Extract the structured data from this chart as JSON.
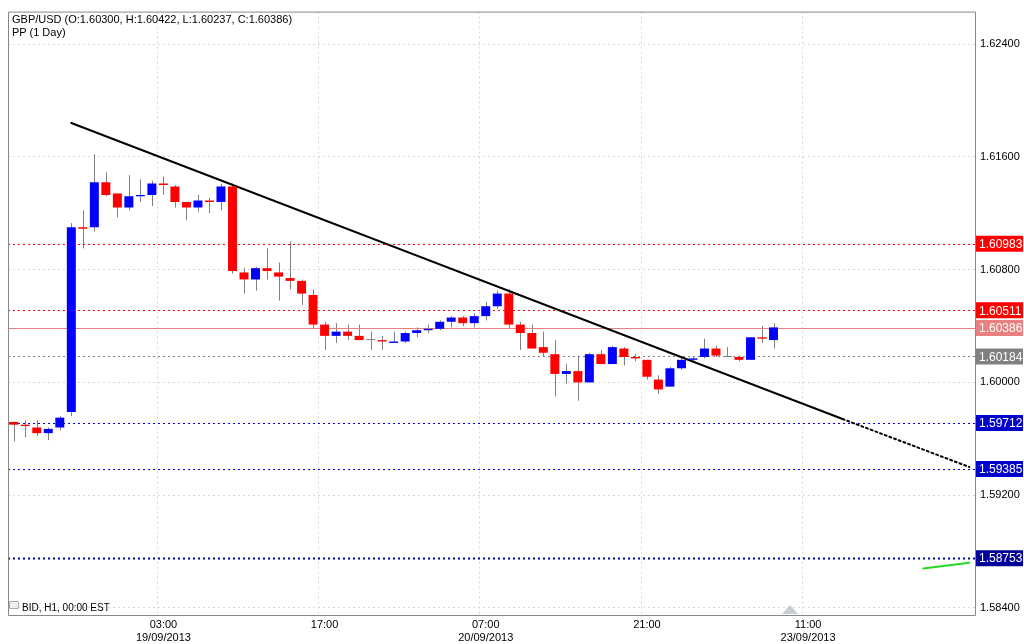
{
  "chart_data": {
    "type": "candlestick",
    "title": "GBP/USD (O:1.60300, H:1.60422, L:1.60237, C:1.60386)",
    "subtitle": "PP (1 Day)",
    "categories": [
      null,
      null,
      null,
      null,
      null,
      null,
      null,
      null,
      null,
      null,
      null,
      null,
      null,
      "03:00\n19/09/2013",
      null,
      null,
      null,
      null,
      null,
      null,
      null,
      null,
      null,
      null,
      null,
      null,
      null,
      "17:00",
      null,
      null,
      null,
      null,
      null,
      null,
      null,
      null,
      null,
      null,
      null,
      null,
      null,
      "07:00\n20/09/2013",
      null,
      null,
      null,
      null,
      null,
      null,
      null,
      null,
      null,
      null,
      null,
      null,
      null,
      "21:00",
      null,
      null,
      null,
      null,
      null,
      null,
      null,
      null,
      null,
      null,
      null,
      null,
      null,
      "11:00\n23/09/2013",
      null,
      null,
      null,
      null,
      null,
      null,
      null,
      null,
      null,
      null,
      null,
      null,
      null,
      null
    ],
    "ohlc": [
      [
        1.5972,
        1.5972,
        1.5958,
        1.597
      ],
      [
        1.597,
        1.5973,
        1.5961,
        1.5969
      ],
      [
        1.5968,
        1.5973,
        1.5962,
        1.5964
      ],
      [
        1.5964,
        1.5968,
        1.5959,
        1.5967
      ],
      [
        1.5968,
        1.5976,
        1.5966,
        1.5975
      ],
      [
        1.5979,
        1.6113,
        1.5976,
        1.611
      ],
      [
        1.611,
        1.6122,
        1.6095,
        1.6109
      ],
      [
        1.611,
        1.6162,
        1.6107,
        1.6142
      ],
      [
        1.6142,
        1.6149,
        1.6132,
        1.6133
      ],
      [
        1.6134,
        1.6134,
        1.6117,
        1.6124
      ],
      [
        1.6124,
        1.6147,
        1.6122,
        1.6132
      ],
      [
        1.6132,
        1.6144,
        1.6128,
        1.6133
      ],
      [
        1.6133,
        1.6143,
        1.6125,
        1.6141
      ],
      [
        1.6141,
        1.6146,
        1.6133,
        1.614
      ],
      [
        1.6139,
        1.614,
        1.6124,
        1.6128
      ],
      [
        1.6128,
        1.6128,
        1.6115,
        1.6124
      ],
      [
        1.6124,
        1.6133,
        1.6121,
        1.6129
      ],
      [
        1.6129,
        1.6131,
        1.612,
        1.6128
      ],
      [
        1.6128,
        1.6141,
        1.6122,
        1.6139
      ],
      [
        1.6139,
        1.6141,
        1.6077,
        1.6079
      ],
      [
        1.6078,
        1.6081,
        1.6063,
        1.6073
      ],
      [
        1.6073,
        1.6082,
        1.6065,
        1.6081
      ],
      [
        1.6081,
        1.6095,
        1.6073,
        1.6079
      ],
      [
        1.6078,
        1.6085,
        1.6058,
        1.6075
      ],
      [
        1.6074,
        1.61,
        1.6066,
        1.6072
      ],
      [
        1.6072,
        1.6073,
        1.6055,
        1.6063
      ],
      [
        1.6062,
        1.6066,
        1.6038,
        1.6041
      ],
      [
        1.6041,
        1.6043,
        1.6023,
        1.6033
      ],
      [
        1.6033,
        1.6042,
        1.6028,
        1.6036
      ],
      [
        1.6036,
        1.6041,
        1.603,
        1.6033
      ],
      [
        1.6033,
        1.6041,
        1.603,
        1.603
      ],
      [
        1.603,
        1.6036,
        1.6023,
        1.603
      ],
      [
        1.603,
        1.6033,
        1.6023,
        1.6029
      ],
      [
        1.6028,
        1.6036,
        1.6028,
        1.6029
      ],
      [
        1.6029,
        1.6036,
        1.6028,
        1.6035
      ],
      [
        1.6035,
        1.6039,
        1.6032,
        1.6037
      ],
      [
        1.6037,
        1.6041,
        1.6035,
        1.6038
      ],
      [
        1.6038,
        1.6044,
        1.6037,
        1.6043
      ],
      [
        1.6043,
        1.6047,
        1.6039,
        1.6046
      ],
      [
        1.6046,
        1.6047,
        1.604,
        1.6042
      ],
      [
        1.6042,
        1.6049,
        1.6039,
        1.6047
      ],
      [
        1.6047,
        1.6057,
        1.6044,
        1.6054
      ],
      [
        1.6054,
        1.6065,
        1.6052,
        1.6063
      ],
      [
        1.6063,
        1.6066,
        1.6038,
        1.6041
      ],
      [
        1.6041,
        1.6043,
        1.6023,
        1.6035
      ],
      [
        1.6035,
        1.6041,
        1.6024,
        1.6024
      ],
      [
        1.6025,
        1.6036,
        1.6018,
        1.6021
      ],
      [
        1.602,
        1.603,
        1.599,
        1.6006
      ],
      [
        1.6006,
        1.6013,
        1.5999,
        1.6008
      ],
      [
        1.6008,
        1.6019,
        1.5987,
        1.6
      ],
      [
        1.6,
        1.6021,
        1.6,
        1.602
      ],
      [
        1.602,
        1.6023,
        1.6013,
        1.6013
      ],
      [
        1.6013,
        1.6026,
        1.6013,
        1.6025
      ],
      [
        1.6024,
        1.6025,
        1.6012,
        1.6018
      ],
      [
        1.6018,
        1.602,
        1.6015,
        1.6017
      ],
      [
        1.6016,
        1.6016,
        1.6002,
        1.6004
      ],
      [
        1.6002,
        1.6005,
        1.5992,
        1.5995
      ],
      [
        1.5997,
        1.6011,
        1.5997,
        1.601
      ],
      [
        1.601,
        1.6018,
        1.6009,
        1.6016
      ],
      [
        1.6016,
        1.6018,
        1.6015,
        1.6017
      ],
      [
        1.6018,
        1.6031,
        1.6017,
        1.6024
      ],
      [
        1.6024,
        1.6026,
        1.6018,
        1.6019
      ],
      [
        1.6018,
        1.6025,
        1.6018,
        1.6018
      ],
      [
        1.6018,
        1.6019,
        1.6015,
        1.6016
      ],
      [
        1.6016,
        1.6032,
        1.6016,
        1.6032
      ],
      [
        1.6032,
        1.604,
        1.6028,
        1.6031
      ],
      [
        1.603,
        1.6042,
        1.6024,
        1.6039
      ],
      null,
      null,
      null,
      null,
      null,
      null,
      null,
      null,
      null,
      null,
      null,
      null,
      null,
      null,
      null,
      null,
      null
    ],
    "colors": [
      "#ff0000",
      "#ff0000",
      "#ff0000",
      "#0000ff",
      "#0000ff",
      "#0000ff",
      "#ff0000",
      "#0000ff",
      "#ff0000",
      "#ff0000",
      "#0000ff",
      "#0000ff",
      "#0000ff",
      "#ff0000",
      "#ff0000",
      "#ff0000",
      "#0000ff",
      "#ff0000",
      "#0000ff",
      "#ff0000",
      "#ff0000",
      "#0000ff",
      "#ff0000",
      "#ff0000",
      "#ff0000",
      "#ff0000",
      "#ff0000",
      "#ff0000",
      "#0000ff",
      "#ff0000",
      "#ff0000",
      "#808080",
      "#ff0000",
      "#0000ff",
      "#0000ff",
      "#0000ff",
      "#0000ff",
      "#0000ff",
      "#0000ff",
      "#ff0000",
      "#0000ff",
      "#0000ff",
      "#0000ff",
      "#ff0000",
      "#ff0000",
      "#ff0000",
      "#ff0000",
      "#ff0000",
      "#0000ff",
      "#ff0000",
      "#0000ff",
      "#ff0000",
      "#0000ff",
      "#ff0000",
      "#ff0000",
      "#ff0000",
      "#ff0000",
      "#0000ff",
      "#0000ff",
      "#0000ff",
      "#0000ff",
      "#ff0000",
      "#808080",
      "#ff0000",
      "#0000ff",
      "#ff0000",
      "#0000ff",
      null,
      null,
      null,
      null,
      null,
      null,
      null,
      null,
      null,
      null,
      null,
      null,
      null,
      null,
      null,
      null,
      null
    ],
    "series": [
      {
        "type": "line",
        "color": "#000000",
        "line_style": "solid",
        "values": [
          null,
          null,
          null,
          null,
          null,
          1.6184,
          null,
          null,
          null,
          null,
          null,
          null,
          null,
          null,
          null,
          null,
          null,
          null,
          null,
          null,
          null,
          null,
          null,
          null,
          null,
          null,
          null,
          null,
          null,
          null,
          null,
          null,
          null,
          null,
          null,
          null,
          null,
          null,
          null,
          null,
          null,
          null,
          null,
          null,
          null,
          null,
          null,
          null,
          null,
          null,
          null,
          null,
          null,
          null,
          null,
          null,
          null,
          null,
          null,
          null,
          null,
          null,
          null,
          null,
          null,
          null,
          null,
          null,
          null,
          null,
          null,
          null,
          1.5974,
          null,
          null,
          null,
          null,
          null,
          null,
          null,
          null,
          null,
          null,
          null
        ]
      },
      {
        "type": "line",
        "color": "#000000",
        "line_style": "dotted",
        "values": [
          null,
          null,
          null,
          null,
          null,
          null,
          null,
          null,
          null,
          null,
          null,
          null,
          null,
          null,
          null,
          null,
          null,
          null,
          null,
          null,
          null,
          null,
          null,
          null,
          null,
          null,
          null,
          null,
          null,
          null,
          null,
          null,
          null,
          null,
          null,
          null,
          null,
          null,
          null,
          null,
          null,
          null,
          null,
          null,
          null,
          null,
          null,
          null,
          null,
          null,
          null,
          null,
          null,
          null,
          null,
          null,
          null,
          null,
          null,
          null,
          null,
          null,
          null,
          null,
          null,
          null,
          null,
          null,
          null,
          null,
          null,
          null,
          1.5974,
          null,
          null,
          null,
          null,
          null,
          null,
          null,
          null,
          null,
          null,
          1.594
        ]
      },
      {
        "type": "line",
        "color": "#22dd22",
        "line_style": "solid",
        "values": [
          null,
          null,
          null,
          null,
          null,
          null,
          null,
          null,
          null,
          null,
          null,
          null,
          null,
          null,
          null,
          null,
          null,
          null,
          null,
          null,
          null,
          null,
          null,
          null,
          null,
          null,
          null,
          null,
          null,
          null,
          null,
          null,
          null,
          null,
          null,
          null,
          null,
          null,
          null,
          null,
          null,
          null,
          null,
          null,
          null,
          null,
          null,
          null,
          null,
          null,
          null,
          null,
          null,
          null,
          null,
          null,
          null,
          null,
          null,
          null,
          null,
          null,
          null,
          null,
          null,
          null,
          null,
          null,
          null,
          null,
          null,
          null,
          null,
          null,
          null,
          null,
          null,
          null,
          null,
          1.5868,
          null,
          null,
          null,
          1.5872
        ]
      }
    ],
    "ref_lines": [
      {
        "axis": "y",
        "value": 1.60983,
        "label": "1.60983",
        "color": "#ff0000",
        "line_style": "dotted"
      },
      {
        "axis": "y",
        "value": 1.60511,
        "label": "1.60511",
        "color": "#ff0000",
        "line_style": "dotted"
      },
      {
        "axis": "y",
        "value": 1.60386,
        "label": "1.60386",
        "color": "#e88080",
        "line_style": "solid"
      },
      {
        "axis": "y",
        "value": 1.60184,
        "label": "1.60184",
        "color": "#808080",
        "line_style": "dotted"
      },
      {
        "axis": "y",
        "value": 1.59712,
        "label": "1.59712",
        "color": "#0000cc",
        "line_style": "dotted"
      },
      {
        "axis": "y",
        "value": 1.59385,
        "label": "1.59385",
        "color": "#0000cc",
        "line_style": "dotted"
      },
      {
        "axis": "y",
        "value": 1.58753,
        "label": "1.58753",
        "color": "#000099",
        "line_style": "dotted"
      }
    ],
    "annotations": [
      "BID, H1, 00:00 EST"
    ],
    "ylim": [
      1.5835,
      1.6263
    ],
    "yticks": [
      {
        "value": 1.584,
        "label": "1.58400"
      },
      {
        "value": 1.592,
        "label": "1.59200"
      },
      {
        "value": 1.6,
        "label": "1.60000"
      },
      {
        "value": 1.608,
        "label": "1.60800"
      },
      {
        "value": 1.616,
        "label": "1.61600"
      },
      {
        "value": 1.624,
        "label": "1.62400"
      }
    ],
    "grid": true,
    "marker": "none"
  }
}
